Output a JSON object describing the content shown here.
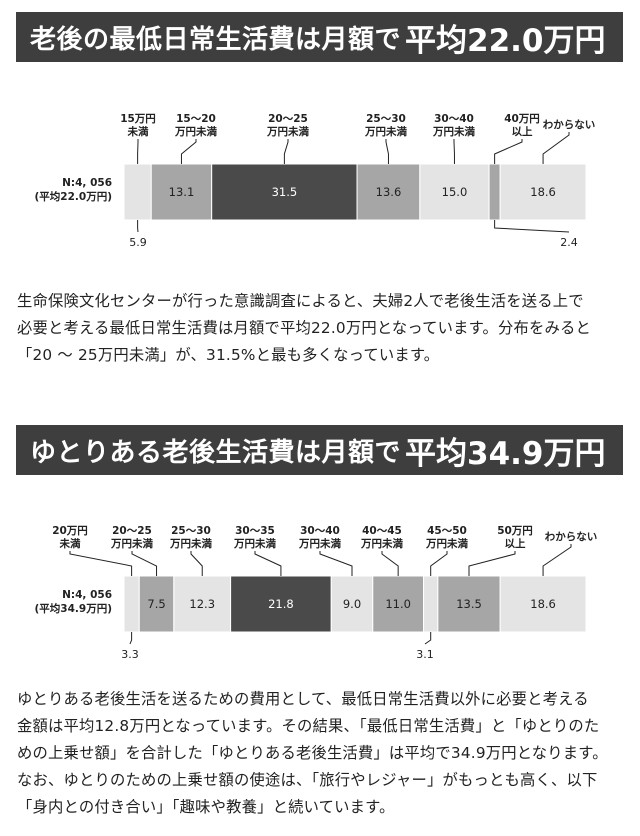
{
  "section1": {
    "title_main": "老後の最低日常生活費は月額で",
    "title_big": "平均22.0万円",
    "paragraph": [
      "生命保険文化センターが行った意識調査によると、夫婦2人で老後生活を送る上で",
      "必要と考える最低日常生活費は月額で平均22.0万円となっています。分布をみると",
      "「20 ～ 25万円未満」が、31.5%と最も多くなっています。"
    ]
  },
  "section2": {
    "title_main": "ゆとりある老後生活費は月額で",
    "title_big": "平均34.9万円",
    "paragraph": [
      "ゆとりある老後生活を送るための費用として、最低日常生活費以外に必要と考える",
      "金額は平均12.8万円となっています。その結果、「最低日常生活費」と「ゆとりのた",
      "めの上乗せ額」を合計した「ゆとりある老後生活費」は平均で34.9万円となります。",
      "なお、ゆとりのための上乗せ額の使途は、「旅行やレジャー」がもっとも高く、以下",
      "「身内との付き合い」「趣味や教養」と続いています。"
    ]
  },
  "chart_data": [
    {
      "type": "bar",
      "stacked": true,
      "orientation": "horizontal",
      "row_label": [
        "N:4, 056",
        "(平均22.0万円)"
      ],
      "categories": [
        [
          "15万円",
          "未満"
        ],
        [
          "15～20",
          "万円未満"
        ],
        [
          "20～25",
          "万円未満"
        ],
        [
          "25～30",
          "万円未満"
        ],
        [
          "30～40",
          "万円未満"
        ],
        [
          "40万円",
          "以上"
        ],
        [
          "わからない"
        ]
      ],
      "values": [
        5.9,
        13.1,
        31.5,
        13.6,
        15.0,
        2.4,
        18.6
      ],
      "value_labels": [
        "5.9",
        "13.1",
        "31.5",
        "13.6",
        "15.0",
        "2.4",
        "18.6"
      ],
      "outside_labels": [
        0,
        5
      ],
      "colors": [
        "#e4e4e4",
        "#a6a6a6",
        "#4a4a4a",
        "#a6a6a6",
        "#e4e4e4",
        "#a6a6a6",
        "#e4e4e4"
      ],
      "text_colors": [
        "#222222",
        "#222222",
        "#ffffff",
        "#222222",
        "#222222",
        "#222222",
        "#222222"
      ]
    },
    {
      "type": "bar",
      "stacked": true,
      "orientation": "horizontal",
      "row_label": [
        "N:4, 056",
        "(平均34.9万円)"
      ],
      "categories": [
        [
          "20万円",
          "未満"
        ],
        [
          "20～25",
          "万円未満"
        ],
        [
          "25～30",
          "万円未満"
        ],
        [
          "30～35",
          "万円未満"
        ],
        [
          "30～40",
          "万円未満"
        ],
        [
          "40～45",
          "万円未満"
        ],
        [
          "45～50",
          "万円未満"
        ],
        [
          "50万円",
          "以上"
        ],
        [
          "わからない"
        ]
      ],
      "values": [
        3.3,
        7.5,
        12.3,
        21.8,
        9.0,
        11.0,
        3.1,
        13.5,
        18.6
      ],
      "value_labels": [
        "3.3",
        "7.5",
        "12.3",
        "21.8",
        "9.0",
        "11.0",
        "3.1",
        "13.5",
        "18.6"
      ],
      "outside_labels": [
        0,
        6
      ],
      "colors": [
        "#e4e4e4",
        "#a6a6a6",
        "#e4e4e4",
        "#4a4a4a",
        "#e4e4e4",
        "#a6a6a6",
        "#e4e4e4",
        "#a6a6a6",
        "#e4e4e4"
      ],
      "text_colors": [
        "#222222",
        "#222222",
        "#222222",
        "#ffffff",
        "#222222",
        "#222222",
        "#222222",
        "#222222",
        "#222222"
      ]
    }
  ]
}
